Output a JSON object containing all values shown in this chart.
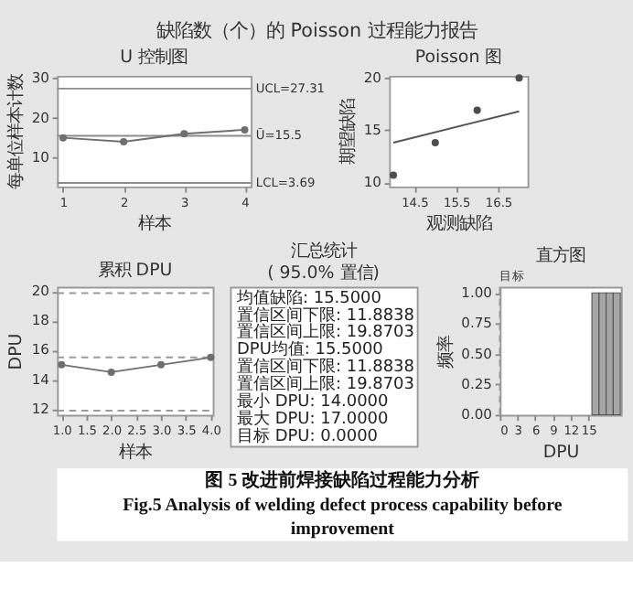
{
  "chart_data": [
    {
      "type": "line",
      "title": "U 控制图",
      "xlabel": "样本",
      "ylabel": "每单位样本计数",
      "x": [
        1,
        2,
        3,
        4
      ],
      "values": [
        15,
        14,
        16,
        17
      ],
      "color": "#6f6f6f",
      "marker": "circle",
      "grid": false,
      "xlim": [
        0.9,
        4.1
      ],
      "xticks": [
        1,
        2,
        3,
        4
      ],
      "ylim": [
        2.8,
        30.5
      ],
      "yticks": [
        10,
        20,
        30
      ],
      "ref_lines": [
        {
          "axis": "y",
          "value": 27.31,
          "label": "UCL=27.31",
          "color": "#8c8c8c"
        },
        {
          "axis": "y",
          "value": 15.5,
          "label": "Ū=15.5",
          "color": "#8c8c8c"
        },
        {
          "axis": "y",
          "value": 3.69,
          "label": "LCL=3.69",
          "color": "#8c8c8c"
        }
      ],
      "annotations": [
        "缺陷数（个）的 Poisson 过程能力报告",
        "图 5  改进前焊接缺陷过程能力分析",
        "Fig.5  Analysis of welding defect process capability before improvement"
      ]
    },
    {
      "type": "scatter",
      "title": "Poisson 图",
      "xlabel": "观测缺陷",
      "ylabel": "期望缺陷",
      "grid": false,
      "xlim": [
        13.9,
        17.2
      ],
      "xticks": [
        14.5,
        15.5,
        16.5
      ],
      "ylim": [
        9.6,
        20.2
      ],
      "yticks": [
        10,
        15,
        20
      ],
      "series": [
        {
          "type": "scatter",
          "color": "#4d4d4d",
          "marker": "circle",
          "x": [
            14,
            15,
            16,
            17
          ],
          "values": [
            10.7,
            13.8,
            16.9,
            20
          ]
        },
        {
          "type": "line",
          "color": "#555555",
          "marker": "none",
          "x": [
            14,
            17
          ],
          "values": [
            13.8,
            16.8
          ]
        }
      ]
    },
    {
      "type": "line",
      "title": "累积 DPU",
      "xlabel": "样本",
      "ylabel": "DPU",
      "x": [
        1,
        2,
        3,
        4
      ],
      "values": [
        15,
        14.5,
        15,
        15.5
      ],
      "color": "#6f6f6f",
      "marker": "circle",
      "grid": false,
      "xlim": [
        0.91,
        4.04
      ],
      "xticks": [
        {
          "value": 1,
          "label": "1.0"
        },
        1.5,
        {
          "value": 2,
          "label": "2.0"
        },
        2.5,
        {
          "value": 3,
          "label": "3.0"
        },
        3.5,
        {
          "value": 4,
          "label": "4.0"
        }
      ],
      "ylim": [
        11.6,
        20.3
      ],
      "yticks": [
        12,
        14,
        16,
        18,
        20
      ],
      "ref_lines": [
        {
          "axis": "y",
          "value": 19.8703,
          "color": "#9a9a9a",
          "line_style": "dashed"
        },
        {
          "axis": "y",
          "value": 15.5,
          "color": "#9a9a9a",
          "line_style": "dashed"
        },
        {
          "axis": "y",
          "value": 11.8838,
          "color": "#9a9a9a",
          "line_style": "dashed"
        }
      ]
    },
    {
      "type": "other",
      "title": "汇总统计",
      "subtitle": "( 95.0% 置信)",
      "annotations": [
        "均值缺陷:  15.5000",
        "置信区间下限:  11.8838",
        "置信区间上限:  19.8703",
        "DPU均值:  15.5000",
        "置信区间下限:  11.8838",
        "置信区间上限:  19.8703",
        "最小 DPU:  14.0000",
        "最大 DPU:  17.0000",
        "目标 DPU:  0.0000"
      ]
    },
    {
      "type": "histogram",
      "title": "直方图",
      "xlabel": "DPU",
      "ylabel": "频率",
      "bins": [
        15.6,
        16.8,
        18,
        19.2,
        20.4
      ],
      "values": [
        1,
        1,
        1,
        1
      ],
      "color": "#a6a6a6",
      "grid": false,
      "xlim": [
        0,
        20.5
      ],
      "xticks": [
        0,
        3,
        6,
        9,
        12,
        15
      ],
      "ylim": [
        0,
        1.05
      ],
      "yticks": [
        {
          "value": 0,
          "label": "0.00"
        },
        {
          "value": 0.25,
          "label": "0.25"
        },
        {
          "value": 0.5,
          "label": "0.50"
        },
        {
          "value": 0.75,
          "label": "0.75"
        },
        {
          "value": 1,
          "label": "1.00"
        }
      ],
      "ref_lines": [
        {
          "axis": "x",
          "value": 0,
          "label": "目标",
          "color": "#9a9a9a",
          "line_style": "dashed"
        }
      ]
    }
  ]
}
